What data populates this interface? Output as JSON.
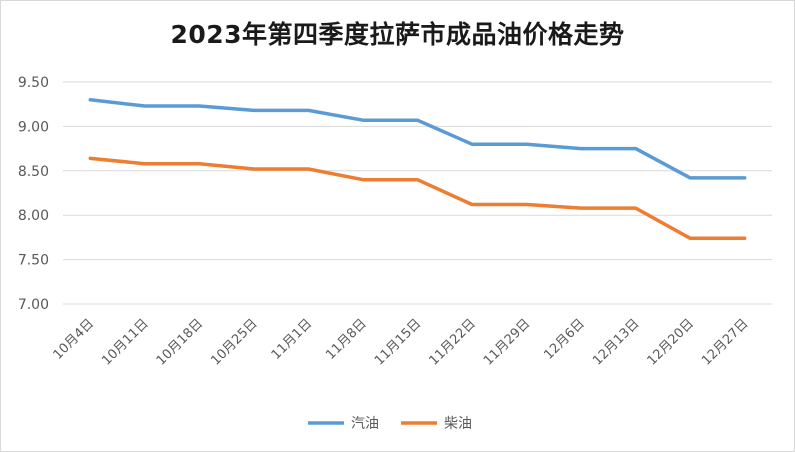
{
  "chart_data": {
    "type": "line",
    "title": "2023年第四季度拉萨市成品油价格走势",
    "xlabel": "",
    "ylabel": "",
    "categories": [
      "10月4日",
      "10月11日",
      "10月18日",
      "10月25日",
      "11月1日",
      "11月8日",
      "11月15日",
      "11月22日",
      "11月29日",
      "12月6日",
      "12月13日",
      "12月20日",
      "12月27日"
    ],
    "ylim": [
      7.0,
      9.5
    ],
    "yticks": [
      "9.50",
      "9.00",
      "8.50",
      "8.00",
      "7.50",
      "7.00"
    ],
    "grid": true,
    "legend_position": "bottom",
    "series": [
      {
        "name": "汽油",
        "color": "#5b9bd5",
        "values": [
          9.3,
          9.23,
          9.23,
          9.18,
          9.18,
          9.07,
          9.07,
          8.8,
          8.8,
          8.75,
          8.75,
          8.42,
          8.42
        ]
      },
      {
        "name": "柴油",
        "color": "#ed7d31",
        "values": [
          8.64,
          8.58,
          8.58,
          8.52,
          8.52,
          8.4,
          8.4,
          8.12,
          8.12,
          8.08,
          8.08,
          7.74,
          7.74
        ]
      }
    ]
  }
}
